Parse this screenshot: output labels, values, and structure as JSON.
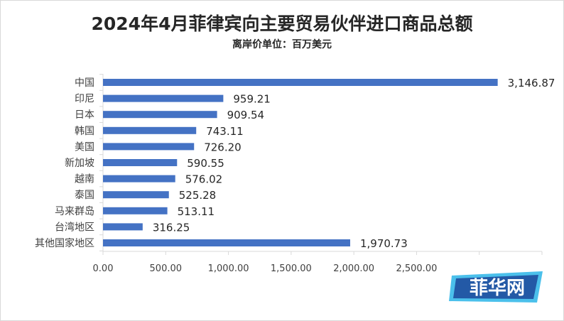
{
  "chart_data": {
    "type": "bar",
    "orientation": "horizontal",
    "title": "2024年4月菲律宾向主要贸易伙伴进口商品总额",
    "subtitle": "离岸价单位：百万美元",
    "categories": [
      "中国",
      "印尼",
      "日本",
      "韩国",
      "美国",
      "新加坡",
      "越南",
      "泰国",
      "马来群岛",
      "台湾地区",
      "其他国家地区"
    ],
    "values": [
      3146.87,
      959.21,
      909.54,
      743.11,
      726.2,
      590.55,
      576.02,
      525.28,
      513.11,
      316.25,
      1970.73
    ],
    "value_labels": [
      "3,146.87",
      "959.21",
      "909.54",
      "743.11",
      "726.20",
      "590.55",
      "576.02",
      "525.28",
      "513.11",
      "316.25",
      "1,970.73"
    ],
    "x_ticks": [
      "0.00",
      "500.00",
      "1,000.00",
      "1,500.00",
      "2,000.00",
      "2,500.00"
    ],
    "xlim": [
      0,
      3500
    ],
    "bar_color": "#4472c4",
    "grid": false,
    "legend": "none"
  },
  "watermark": {
    "text": "菲华网",
    "color": "#1f4e9e",
    "accent": "#2bb5e8"
  }
}
